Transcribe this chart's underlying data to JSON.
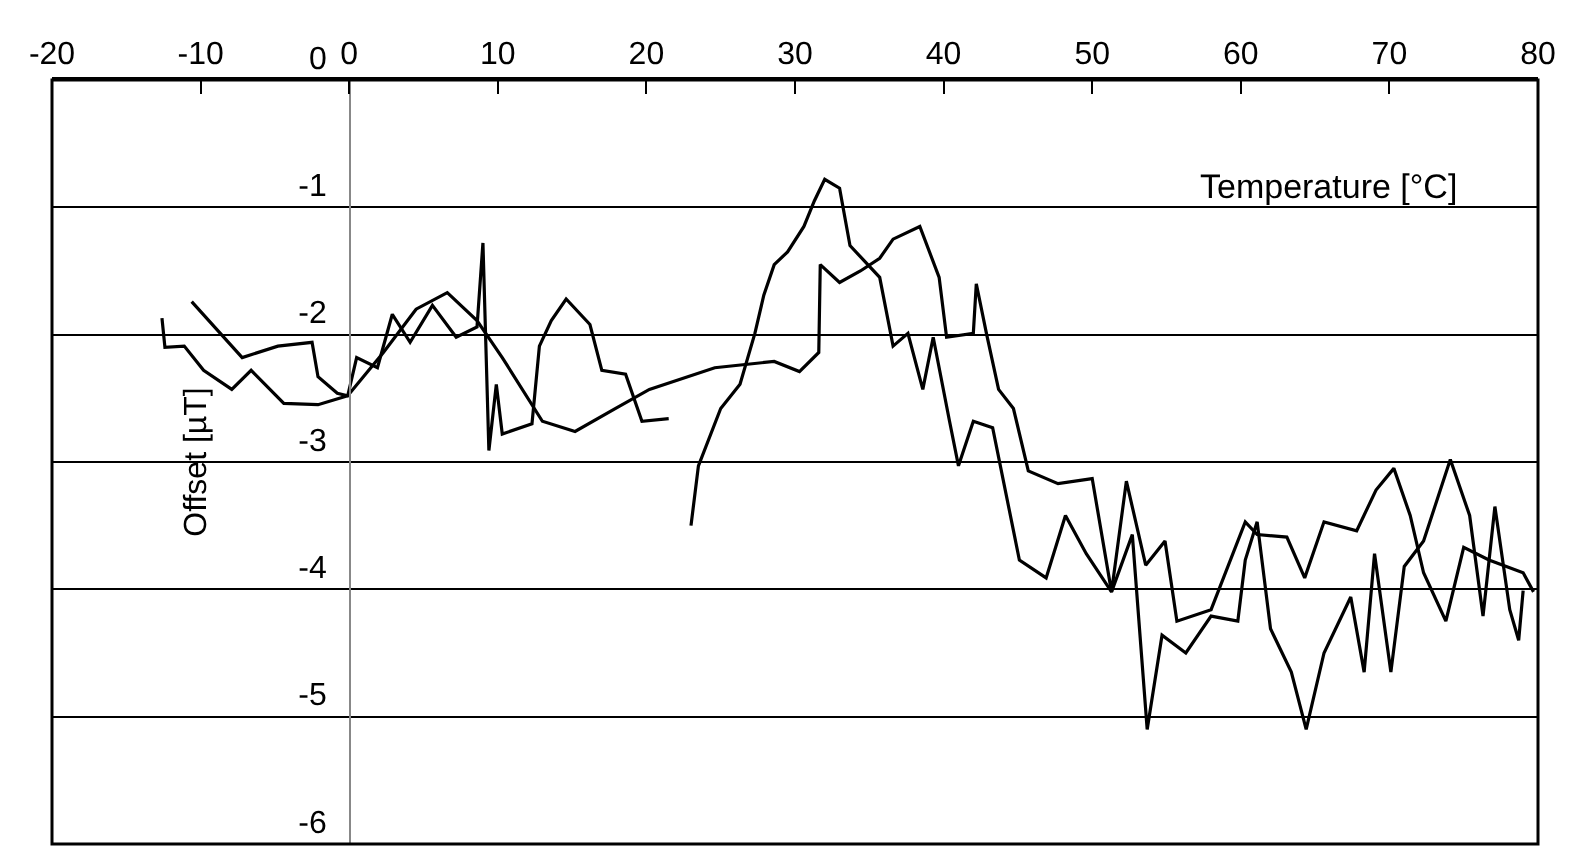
{
  "chart_data": {
    "type": "line",
    "xlabel": "Temperature [°C]",
    "ylabel": "Offset [µT]",
    "xlim": [
      -20,
      80
    ],
    "xticks": [
      -20,
      -10,
      0,
      10,
      20,
      30,
      40,
      50,
      60,
      70,
      80
    ],
    "ylim": [
      -6,
      0
    ],
    "yticks": [
      -6,
      -5,
      -4,
      -3,
      -2,
      -1,
      0
    ],
    "grid": "y",
    "series": [
      {
        "color": "#000000",
        "x": [
          -10.6,
          -7.2,
          -4.8,
          -2.5,
          -2.1,
          -0.8,
          -0.1,
          2.3,
          4.5,
          6.6,
          8.6,
          10.3,
          13.0,
          15.2,
          17.9,
          20.2,
          24.6,
          28.6,
          30.3,
          31.6,
          31.7,
          33.0,
          34.4,
          35.7,
          36.6,
          38.4,
          39.7,
          40.2,
          42.0,
          42.2,
          42.9,
          43.7,
          44.7,
          45.7,
          47.7,
          50.0,
          51.3,
          52.3,
          53.6,
          54.9,
          55.7,
          58.0,
          60.3,
          61.1,
          63.1,
          64.3,
          65.6,
          67.8,
          69.1,
          70.3,
          71.4,
          72.3,
          73.8,
          75.0,
          76.7,
          79.0,
          79.7
        ],
        "values": [
          -1.74,
          -2.18,
          -2.09,
          -2.06,
          -2.33,
          -2.46,
          -2.48,
          -2.14,
          -1.8,
          -1.67,
          -1.89,
          -2.18,
          -2.68,
          -2.76,
          -2.58,
          -2.43,
          -2.26,
          -2.21,
          -2.29,
          -2.14,
          -1.45,
          -1.59,
          -1.5,
          -1.4,
          -1.25,
          -1.15,
          -1.55,
          -2.02,
          -1.99,
          -1.6,
          -2.0,
          -2.43,
          -2.58,
          -3.07,
          -3.17,
          -3.13,
          -4.02,
          -3.15,
          -3.81,
          -3.62,
          -4.25,
          -4.16,
          -3.47,
          -3.57,
          -3.59,
          -3.91,
          -3.47,
          -3.54,
          -3.22,
          -3.05,
          -3.42,
          -3.87,
          -4.25,
          -3.67,
          -3.77,
          -3.87,
          -4.02
        ]
      },
      {
        "color": "#000000",
        "x": [
          -12.6,
          -12.4,
          -11.1,
          -9.8,
          -7.9,
          -6.6,
          -4.4,
          -2.1,
          -0.1,
          0.5,
          1.9,
          2.9,
          4.1,
          5.6,
          7.2,
          8.6,
          9.0,
          9.4,
          9.9,
          10.3,
          12.3,
          12.8,
          13.6,
          14.6,
          16.2,
          17.0,
          18.6,
          19.7,
          21.5,
          22.5,
          23.0,
          23.5,
          25.0,
          26.3,
          27.3,
          27.9,
          28.6,
          29.5,
          30.6,
          31.3,
          32.0,
          33.0,
          33.7,
          34.9,
          35.7,
          36.6,
          37.6,
          38.6,
          39.3,
          40.4,
          41.0,
          42.0,
          43.3,
          45.1,
          46.9,
          48.2,
          49.6,
          51.3,
          52.7,
          53.7,
          54.7,
          56.3,
          58.0,
          59.8,
          60.3,
          61.1,
          62.0,
          63.4,
          64.4,
          65.6,
          67.4,
          68.3,
          69.0,
          70.1,
          71.0,
          72.3,
          74.1,
          75.4,
          76.3,
          77.1,
          78.1,
          78.7,
          79.0
        ],
        "values": [
          -1.87,
          -2.1,
          -2.09,
          -2.28,
          -2.43,
          -2.28,
          -2.54,
          -2.55,
          -2.48,
          -2.18,
          -2.26,
          -1.84,
          -2.06,
          -1.77,
          -2.02,
          -1.94,
          -1.28,
          -2.91,
          -2.39,
          -2.78,
          -2.7,
          -2.09,
          -1.89,
          -1.72,
          -1.92,
          -2.28,
          -2.31,
          -2.68,
          -2.66,
          null,
          -3.5,
          -3.03,
          -2.58,
          -2.39,
          -1.99,
          -1.69,
          -1.45,
          -1.35,
          -1.15,
          -0.95,
          -0.78,
          -0.85,
          -1.3,
          -1.45,
          -1.55,
          -2.09,
          -1.99,
          -2.43,
          -2.02,
          -2.68,
          -3.03,
          -2.68,
          -2.73,
          -3.77,
          -3.91,
          -3.42,
          -3.72,
          -4.02,
          -3.57,
          -5.1,
          -4.36,
          -4.5,
          -4.21,
          -4.25,
          -3.77,
          -3.47,
          -4.31,
          -4.65,
          -5.1,
          -4.5,
          -4.06,
          -4.65,
          -3.72,
          -4.65,
          -3.82,
          -3.62,
          -2.98,
          -3.42,
          -4.21,
          -3.35,
          -4.16,
          -4.4,
          -4.01
        ]
      }
    ]
  }
}
